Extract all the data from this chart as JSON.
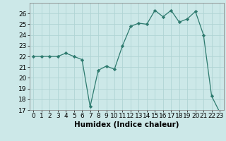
{
  "x": [
    0,
    1,
    2,
    3,
    4,
    5,
    6,
    7,
    8,
    9,
    10,
    11,
    12,
    13,
    14,
    15,
    16,
    17,
    18,
    19,
    20,
    21,
    22,
    23
  ],
  "y": [
    22,
    22,
    22,
    22,
    22.3,
    22,
    21.7,
    17.3,
    20.7,
    21.1,
    20.8,
    23,
    24.8,
    25.1,
    25,
    26.3,
    25.7,
    26.3,
    25.2,
    25.5,
    26.2,
    24.0,
    18.3,
    16.8
  ],
  "line_color": "#2d7a6e",
  "marker": "D",
  "marker_size": 2.2,
  "bg_color": "#cce8e8",
  "grid_major_color": "#b0d4d4",
  "grid_minor_color": "#c0dcdc",
  "xlabel": "Humidex (Indice chaleur)",
  "xlim": [
    -0.5,
    23.5
  ],
  "ylim": [
    17,
    27
  ],
  "yticks": [
    17,
    18,
    19,
    20,
    21,
    22,
    23,
    24,
    25,
    26
  ],
  "xtick_labels": [
    "0",
    "1",
    "2",
    "3",
    "4",
    "5",
    "6",
    "7",
    "8",
    "9",
    "10",
    "11",
    "12",
    "13",
    "14",
    "15",
    "16",
    "17",
    "18",
    "19",
    "20",
    "21",
    "22",
    "23"
  ],
  "xlabel_fontsize": 7.5,
  "tick_fontsize": 6.5
}
